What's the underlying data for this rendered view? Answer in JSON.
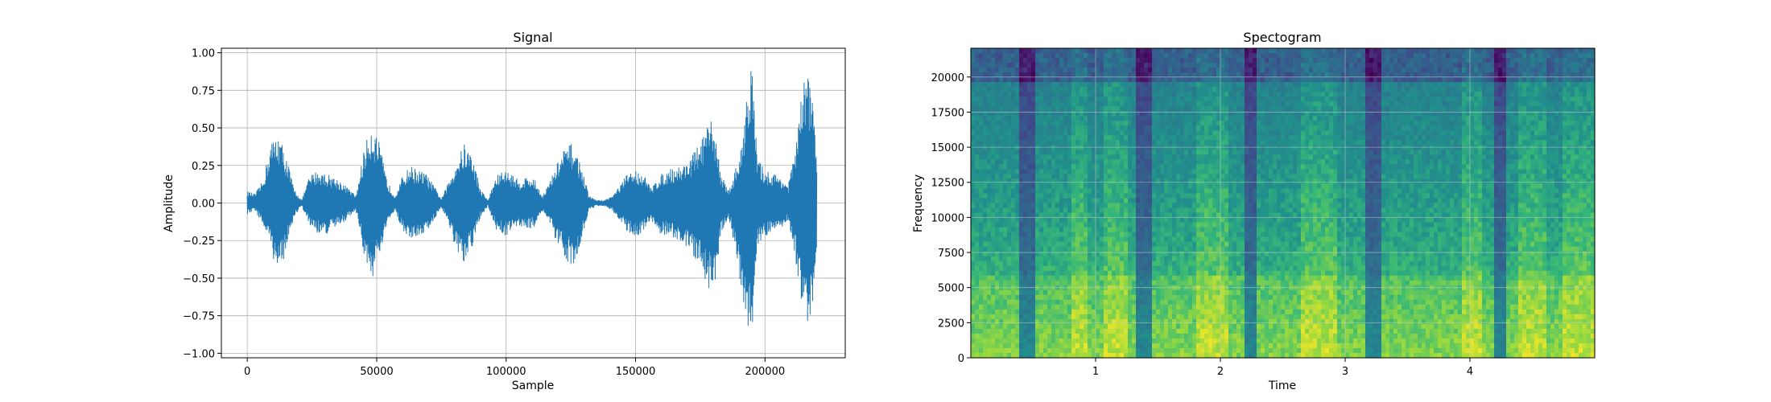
{
  "chart_data": [
    {
      "type": "line",
      "title": "Signal",
      "xlabel": "Sample",
      "ylabel": "Amplitude",
      "xlim": [
        -10000,
        231000
      ],
      "ylim": [
        -1.03,
        1.03
      ],
      "x_ticks": [
        0,
        50000,
        100000,
        150000,
        200000
      ],
      "y_ticks": [
        1.0,
        0.75,
        0.5,
        0.25,
        0.0,
        -0.25,
        -0.5,
        -0.75,
        -1.0
      ],
      "x_tick_labels": [
        "0",
        "50000",
        "100000",
        "150000",
        "200000"
      ],
      "y_tick_labels": [
        "1.00",
        "0.75",
        "0.50",
        "0.25",
        "0.00",
        "−0.25",
        "−0.50",
        "−0.75",
        "−1.00"
      ],
      "grid": true,
      "color": "#1f77b4",
      "envelope": {
        "x": [
          0,
          3000,
          6000,
          9000,
          12000,
          15000,
          18000,
          21000,
          24000,
          27000,
          30000,
          33000,
          36000,
          39000,
          42000,
          45000,
          48000,
          51000,
          54000,
          57000,
          60000,
          63000,
          66000,
          69000,
          72000,
          75000,
          78000,
          81000,
          84000,
          87000,
          90000,
          93000,
          96000,
          99000,
          102000,
          105000,
          108000,
          111000,
          114000,
          117000,
          120000,
          123000,
          126000,
          129000,
          132000,
          135000,
          138000,
          141000,
          144000,
          147000,
          150000,
          153000,
          156000,
          159000,
          162000,
          165000,
          168000,
          171000,
          174000,
          177000,
          180000,
          183000,
          186000,
          189000,
          191000,
          193000,
          195000,
          197000,
          200000,
          203000,
          206000,
          209000,
          212000,
          214000,
          216000,
          218000,
          220000
        ],
        "upper": [
          0.08,
          0.06,
          0.15,
          0.4,
          0.47,
          0.32,
          0.1,
          0.02,
          0.18,
          0.22,
          0.2,
          0.18,
          0.15,
          0.1,
          0.05,
          0.35,
          0.53,
          0.4,
          0.15,
          0.05,
          0.18,
          0.25,
          0.22,
          0.2,
          0.12,
          0.03,
          0.15,
          0.3,
          0.4,
          0.32,
          0.1,
          0.02,
          0.18,
          0.22,
          0.2,
          0.15,
          0.18,
          0.16,
          0.05,
          0.15,
          0.28,
          0.38,
          0.4,
          0.25,
          0.05,
          0.02,
          0.02,
          0.05,
          0.12,
          0.2,
          0.22,
          0.2,
          0.1,
          0.18,
          0.22,
          0.24,
          0.25,
          0.3,
          0.38,
          0.48,
          0.57,
          0.2,
          0.08,
          0.25,
          0.38,
          0.8,
          0.93,
          0.3,
          0.22,
          0.2,
          0.18,
          0.12,
          0.4,
          0.7,
          0.9,
          0.85,
          0.3
        ],
        "lower": [
          -0.08,
          -0.05,
          -0.15,
          -0.3,
          -0.5,
          -0.32,
          -0.1,
          -0.02,
          -0.15,
          -0.2,
          -0.22,
          -0.18,
          -0.15,
          -0.1,
          -0.05,
          -0.35,
          -0.52,
          -0.38,
          -0.15,
          -0.05,
          -0.18,
          -0.25,
          -0.22,
          -0.2,
          -0.12,
          -0.03,
          -0.15,
          -0.35,
          -0.42,
          -0.3,
          -0.1,
          -0.02,
          -0.18,
          -0.22,
          -0.2,
          -0.15,
          -0.18,
          -0.16,
          -0.05,
          -0.15,
          -0.3,
          -0.38,
          -0.42,
          -0.25,
          -0.05,
          -0.02,
          -0.02,
          -0.05,
          -0.12,
          -0.2,
          -0.22,
          -0.2,
          -0.12,
          -0.2,
          -0.22,
          -0.24,
          -0.28,
          -0.32,
          -0.4,
          -0.55,
          -0.62,
          -0.2,
          -0.1,
          -0.35,
          -0.6,
          -0.85,
          -0.93,
          -0.3,
          -0.22,
          -0.2,
          -0.18,
          -0.12,
          -0.4,
          -0.7,
          -0.8,
          -0.75,
          -0.3
        ]
      }
    },
    {
      "type": "heatmap",
      "title": "Spectogram",
      "xlabel": "Time",
      "ylabel": "Frequency",
      "xlim": [
        0,
        5.0
      ],
      "ylim": [
        0,
        22050
      ],
      "x_ticks": [
        1,
        2,
        3,
        4
      ],
      "y_ticks": [
        0,
        2500,
        5000,
        7500,
        10000,
        12500,
        15000,
        17500,
        20000
      ],
      "x_tick_labels": [
        "1",
        "2",
        "3",
        "4"
      ],
      "y_tick_labels": [
        "0",
        "2500",
        "5000",
        "7500",
        "10000",
        "12500",
        "15000",
        "17500",
        "20000"
      ],
      "grid": true,
      "colormap": "viridis",
      "quiet_time_bands": [
        [
          0.4,
          0.52
        ],
        [
          1.33,
          1.45
        ],
        [
          2.2,
          2.3
        ],
        [
          3.17,
          3.3
        ],
        [
          4.18,
          4.3
        ]
      ],
      "bright_time_bands": [
        [
          0.8,
          0.95
        ],
        [
          1.05,
          1.25
        ],
        [
          1.82,
          2.05
        ],
        [
          2.65,
          2.95
        ],
        [
          3.95,
          4.1
        ],
        [
          4.4,
          4.6
        ],
        [
          4.75,
          5.0
        ]
      ]
    }
  ]
}
